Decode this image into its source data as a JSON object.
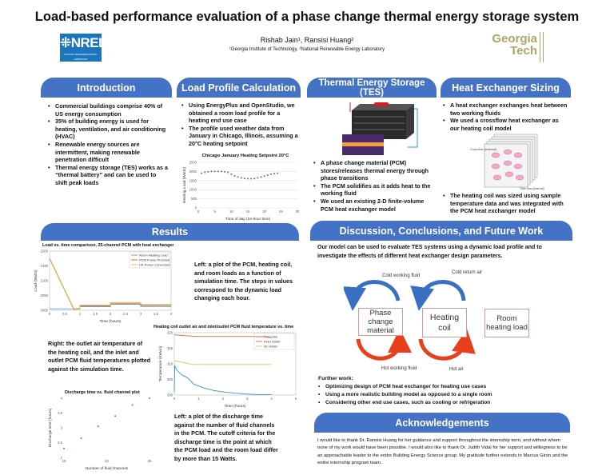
{
  "header": {
    "title": "Load-based performance evaluation of a phase change thermal energy storage system",
    "authors": "Rishab Jain¹, Ransisi Huang²",
    "affiliations": "¹Georgia Institute of Technology,  ²National Renewable Energy Laboratory",
    "nrel_logo": {
      "text": "NREL",
      "subtext": "NATIONAL RENEWABLE ENERGY LABORATORY",
      "color": "#1b75bc"
    },
    "gt_logo": {
      "line1": "Georgia",
      "line2": "Tech",
      "color": "#b3a369"
    }
  },
  "colors": {
    "header_blue": "#4472c4",
    "arrow_blue": "#3a6fc4",
    "arrow_red": "#e8401c"
  },
  "introduction": {
    "heading": "Introduction",
    "bullets": [
      "Commercial buildings comprise 40% of US energy consumption",
      "35% of building energy is used for heating, ventilation, and air conditioning (HVAC)",
      "Renewable energy sources are intermittent, making renewable penetration difficult",
      "Thermal energy storage (TES) works as a “thermal battery” and can be used to shift peak loads"
    ]
  },
  "load_profile": {
    "heading": "Load Profile Calculation",
    "bullets": [
      "Using EnergyPlus and OpenStudio, we obtained a room load profile for a heating end use case",
      "The profile used weather data from January in Chicago, Illinois, assuming a 20°C heating setpoint"
    ]
  },
  "tes": {
    "heading": "Thermal Energy Storage (TES)",
    "bullets": [
      "A phase change material (PCM) stores/releases thermal energy through phase transitions",
      "The PCM solidifies as it adds heat to the working fluid",
      "We used an existing 2-D finite-volume PCM heat exchanger model"
    ]
  },
  "hx": {
    "heading": "Heat Exchanger Sizing",
    "bullets": [
      "A heat exchanger exchanges heat between two working fluids",
      "We used a crossflow heat exchanger as our heating coil model"
    ],
    "bullets2": [
      "The heating coil was sized using sample temperature data and was integrated with the PCM heat exchanger model"
    ],
    "figure_labels": {
      "cross": "Cross flow (external)",
      "tube": "Tube flow (internal)"
    }
  },
  "results": {
    "heading": "Results",
    "caption1": "Left: a plot of the PCM, heating coil, and room loads as a function of simulation time. The steps in values correspond to the dynamic load changing each hour.",
    "caption2": "Right: the outlet air temperature of the heating coil, and the inlet and outlet PCM fluid temperatures plotted against the simulation time.",
    "caption3": "Left: a plot of the discharge time against the number of fluid channels in the PCM. The cutoff criteria for the discharge time is the point at which the PCM load and the room load differ by more than 15 Watts."
  },
  "discussion": {
    "heading": "Discussion, Conclusions, and Future Work",
    "intro": "Our model can be used to evaluate TES systems using a dynamic load profile and to investigate the effects of different heat exchanger design parameters.",
    "diagram": {
      "boxes": [
        "Phase change material",
        "Heating coil",
        "Room heating load"
      ],
      "arrows": [
        "Cold working fluid",
        "Cold return air",
        "Hot working fluid",
        "Hot air"
      ]
    },
    "further_title": "Further work:",
    "further": [
      "Optimizing design of PCM heat exchanger for heating use cases",
      "Using a more realistic building model as opposed to a single room",
      "Considering other end use cases, such as cooling or refrigeration"
    ]
  },
  "acknowledgements": {
    "heading": "Acknowledgements",
    "text": "I would like to thank Dr. Ransisi Huang for her guidance and support throughout the internship term, and without whom none of my work would have been possible. I would also like to thank Dr. Judith Vidal for her support and willingness to be an approachable leader to the entire Building Energy Science group. My gratitude further extends to Marcus Giron and the entire internship program team."
  },
  "chart_data": [
    {
      "id": "profile",
      "type": "scatter",
      "title": "Chicago January Heating Setpoint 20°C",
      "xlabel": "Time of day (24-hour time)",
      "ylabel": "Heating Load (Watts)",
      "xlim": [
        0,
        30
      ],
      "ylim": [
        0,
        2500
      ],
      "xticks": [
        0,
        5,
        10,
        15,
        20,
        25,
        30
      ],
      "yticks": [
        0,
        500,
        1000,
        1500,
        2000,
        2500
      ],
      "grid": true,
      "series": [
        {
          "color": "#4472c4",
          "x": [
            1,
            2,
            3,
            4,
            5,
            6,
            7,
            8,
            9,
            10,
            11,
            12,
            13,
            14,
            15,
            16,
            17,
            18,
            19,
            20,
            21,
            22,
            23,
            24
          ],
          "y": [
            1900,
            1950,
            1980,
            2000,
            2000,
            2000,
            2000,
            1980,
            1950,
            1850,
            1760,
            1700,
            1650,
            1620,
            1600,
            1600,
            1610,
            1650,
            1700,
            1750,
            1800,
            1850,
            1880,
            1900
          ]
        }
      ]
    },
    {
      "id": "load",
      "type": "line",
      "title": "Load vs. time comparison, 25-channel PCM with heat exchanger",
      "xlabel": "Time (hours)",
      "ylabel": "Load (Watts)",
      "xlim": [
        0,
        4
      ],
      "ylim": [
        2000,
        2200
      ],
      "xticks": [
        0,
        0.5,
        1,
        1.5,
        2,
        2.5,
        3,
        3.5,
        4
      ],
      "yticks": [
        2000,
        2050,
        2100,
        2150,
        2200
      ],
      "legend": "top-right",
      "series": [
        {
          "name": "Room Heating Load",
          "color": "#5b9bd5",
          "x": [
            0,
            1,
            1,
            2,
            2,
            3,
            3,
            4
          ],
          "y": [
            2005,
            2005,
            2012,
            2012,
            2020,
            2020,
            2013,
            2013
          ]
        },
        {
          "name": "PCM Power Provided",
          "color": "#c0632a",
          "x": [
            0,
            0.8,
            1,
            1,
            2,
            2,
            3,
            3,
            4
          ],
          "y": [
            2175,
            2003,
            2005,
            2015,
            2015,
            2022,
            2022,
            2016,
            2016
          ]
        },
        {
          "name": "HX Power Consumed",
          "color": "#e8b84a",
          "x": [
            0,
            0.8,
            1,
            1,
            2,
            2,
            3,
            3,
            4
          ],
          "y": [
            2177,
            2005,
            2007,
            2018,
            2018,
            2026,
            2026,
            2020,
            2020
          ]
        }
      ]
    },
    {
      "id": "temp",
      "type": "line",
      "title": "Heating coil outlet air and inlet/outlet PCM fluid temperature vs. time",
      "xlabel": "Time (hours)",
      "ylabel": "Temperature (Kelvin)",
      "xlim": [
        0,
        5
      ],
      "ylim": [
        300,
        320
      ],
      "xticks": [
        0,
        1,
        2,
        3,
        4,
        5
      ],
      "yticks": [
        300,
        305,
        310,
        315,
        320
      ],
      "legend": "top-right",
      "series": [
        {
          "name": "Fluid Inlet",
          "color": "#3d8fd1",
          "x": [
            0,
            0.02,
            0.1,
            0.3,
            0.55,
            0.8,
            1.2,
            1.6,
            2,
            2.5,
            3,
            3.5,
            4
          ],
          "y": [
            301,
            309.5,
            308,
            306.5,
            305.5,
            303.5,
            302.3,
            301.5,
            301,
            300.6,
            300.3,
            300.1,
            300.1
          ]
        },
        {
          "name": "Fluid Outlet",
          "color": "#d9682e",
          "x": [
            0,
            0.5,
            1,
            2,
            3,
            3.8,
            4
          ],
          "y": [
            319.3,
            319.0,
            318.8,
            318.8,
            318.8,
            318.7,
            318.3
          ]
        },
        {
          "name": "Air Outlet",
          "color": "#e8c15a",
          "x": [
            0,
            0.2,
            0.5,
            0.75,
            1,
            2,
            3,
            4
          ],
          "y": [
            311,
            310.7,
            310.2,
            309.8,
            309.8,
            309.8,
            309.8,
            309.8
          ]
        }
      ]
    },
    {
      "id": "discharge",
      "type": "scatter",
      "title": "Discharge time vs. fluid channel plot",
      "xlabel": "Number of fluid channels",
      "ylabel": "Discharge time (hours)",
      "xlim": [
        15,
        25
      ],
      "ylim": [
        2,
        4
      ],
      "xticks": [
        15,
        20,
        25
      ],
      "yticks": [
        2,
        2.5,
        3,
        3.5,
        4
      ],
      "series": [
        {
          "color": "#3d7fc4",
          "x": [
            15,
            17,
            19,
            21,
            23,
            25
          ],
          "y": [
            2.3,
            2.65,
            3.05,
            3.4,
            3.77,
            4.0
          ]
        }
      ]
    }
  ]
}
